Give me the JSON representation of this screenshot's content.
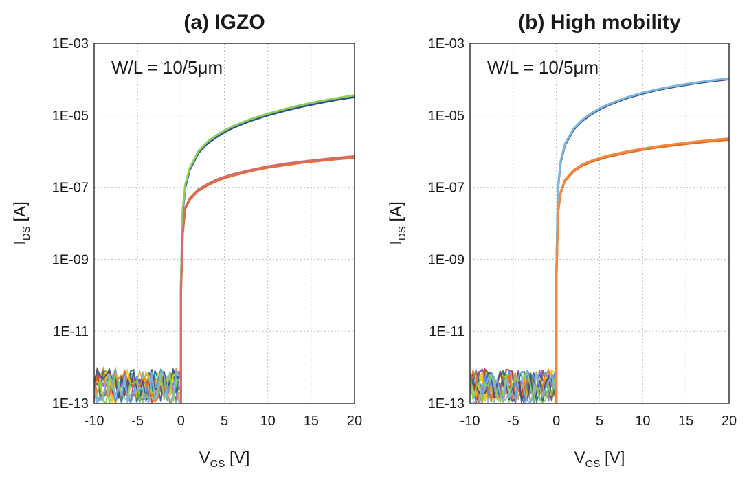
{
  "chart_data": [
    {
      "type": "line",
      "panel": "a",
      "title": "(a) IGZO",
      "annotation": "W/L = 10/5μm",
      "xlabel": {
        "main": "V",
        "sub": "GS",
        "unit": " [V]"
      },
      "ylabel": {
        "main": "I",
        "sub": "DS",
        "unit": " [A]"
      },
      "xlim": [
        -10,
        20
      ],
      "ylim": [
        1e-13,
        0.001
      ],
      "yscale": "log",
      "grid": true,
      "xticks": [
        "-10",
        "-5",
        "0",
        "5",
        "10",
        "15",
        "20"
      ],
      "yticks": [
        "1E-03",
        "1E-05",
        "1E-07",
        "1E-09",
        "1E-11",
        "1E-13"
      ],
      "ytick_values": [
        0.001,
        1e-05,
        1e-07,
        1e-09,
        1e-11,
        1e-13
      ],
      "off_noise": {
        "x_start": -10,
        "x_end": -0.2,
        "floor": 1e-13,
        "ceiling": 1e-12
      },
      "series": [
        {
          "color": "#2f4f8f",
          "x": [
            0,
            0.2,
            0.5,
            1,
            2,
            3,
            4,
            5,
            6,
            8,
            10,
            12,
            14,
            16,
            18,
            20
          ],
          "y": [
            2e-10,
            2e-08,
            1e-07,
            3e-07,
            9e-07,
            1.6e-06,
            2.4e-06,
            3.4e-06,
            4.5e-06,
            7e-06,
            1e-05,
            1.35e-05,
            1.75e-05,
            2.2e-05,
            2.7e-05,
            3.2e-05
          ]
        },
        {
          "color": "#8ccf5a",
          "x": [
            0,
            0.2,
            0.5,
            1,
            2,
            3,
            4,
            5,
            6,
            8,
            10,
            12,
            14,
            16,
            18,
            20
          ],
          "y": [
            2.4e-10,
            2.4e-08,
            1.2e-07,
            3.4e-07,
            1e-06,
            1.8e-06,
            2.7e-06,
            3.8e-06,
            5e-06,
            7.8e-06,
            1.1e-05,
            1.5e-05,
            1.95e-05,
            2.45e-05,
            3e-05,
            3.6e-05
          ]
        },
        {
          "color": "#e8702a",
          "x": [
            0,
            0.2,
            0.5,
            1,
            2,
            3,
            4,
            5,
            6,
            8,
            10,
            12,
            14,
            16,
            18,
            20
          ],
          "y": [
            1e-10,
            5e-09,
            2.5e-08,
            4.5e-08,
            8e-08,
            1.1e-07,
            1.45e-07,
            1.8e-07,
            2.1e-07,
            2.8e-07,
            3.5e-07,
            4.1e-07,
            4.8e-07,
            5.4e-07,
            6e-07,
            6.6e-07
          ]
        },
        {
          "color": "#d46b6b",
          "x": [
            0,
            0.2,
            0.5,
            1,
            2,
            3,
            4,
            5,
            6,
            8,
            10,
            12,
            14,
            16,
            18,
            20
          ],
          "y": [
            1.1e-10,
            5.5e-09,
            2.7e-08,
            4.9e-08,
            8.7e-08,
            1.2e-07,
            1.6e-07,
            1.95e-07,
            2.3e-07,
            3e-07,
            3.8e-07,
            4.5e-07,
            5.2e-07,
            5.9e-07,
            6.6e-07,
            7.3e-07
          ]
        }
      ]
    },
    {
      "type": "line",
      "panel": "b",
      "title": "(b) High mobility",
      "annotation": "W/L = 10/5μm",
      "xlabel": {
        "main": "V",
        "sub": "GS",
        "unit": " [V]"
      },
      "ylabel": {
        "main": "I",
        "sub": "DS",
        "unit": " [A]"
      },
      "xlim": [
        -10,
        20
      ],
      "ylim": [
        1e-13,
        0.001
      ],
      "yscale": "log",
      "grid": true,
      "xticks": [
        "-10",
        "-5",
        "0",
        "5",
        "10",
        "15",
        "20"
      ],
      "yticks": [
        "1E-03",
        "1E-05",
        "1E-07",
        "1E-09",
        "1E-11",
        "1E-13"
      ],
      "ytick_values": [
        0.001,
        1e-05,
        1e-07,
        1e-09,
        1e-11,
        1e-13
      ],
      "off_noise": {
        "x_start": -10,
        "x_end": -0.2,
        "floor": 1e-13,
        "ceiling": 1e-12
      },
      "series": [
        {
          "color": "#3a4f86",
          "x": [
            0,
            0.2,
            0.5,
            1,
            2,
            3,
            4,
            5,
            6,
            8,
            10,
            12,
            14,
            16,
            18,
            20
          ],
          "y": [
            5e-10,
            1e-07,
            5e-07,
            1.5e-06,
            4e-06,
            7e-06,
            1.05e-05,
            1.45e-05,
            1.9e-05,
            2.9e-05,
            4e-05,
            5.2e-05,
            6.4e-05,
            7.6e-05,
            8.8e-05,
            0.0001
          ]
        },
        {
          "color": "#7fb6dc",
          "x": [
            0,
            0.2,
            0.5,
            1,
            2,
            3,
            4,
            5,
            6,
            8,
            10,
            12,
            14,
            16,
            18,
            20
          ],
          "y": [
            5.5e-10,
            1.1e-07,
            5.5e-07,
            1.6e-06,
            4.3e-06,
            7.5e-06,
            1.12e-05,
            1.55e-05,
            2e-05,
            3.05e-05,
            4.2e-05,
            5.45e-05,
            6.7e-05,
            8e-05,
            9.3e-05,
            0.000106
          ]
        },
        {
          "color": "#e56a1f",
          "x": [
            0,
            0.2,
            0.5,
            1,
            2,
            3,
            4,
            5,
            6,
            8,
            10,
            12,
            14,
            16,
            18,
            20
          ],
          "y": [
            2e-10,
            2e-08,
            7e-08,
            1.5e-07,
            2.8e-07,
            4e-07,
            5e-07,
            6e-07,
            7e-07,
            9e-07,
            1.1e-06,
            1.3e-06,
            1.5e-06,
            1.7e-06,
            1.9e-06,
            2.1e-06
          ]
        },
        {
          "color": "#f08a44",
          "x": [
            0,
            0.2,
            0.5,
            1,
            2,
            3,
            4,
            5,
            6,
            8,
            10,
            12,
            14,
            16,
            18,
            20
          ],
          "y": [
            2.2e-10,
            2.2e-08,
            7.6e-08,
            1.62e-07,
            3e-07,
            4.3e-07,
            5.4e-07,
            6.5e-07,
            7.6e-07,
            9.7e-07,
            1.18e-06,
            1.4e-06,
            1.62e-06,
            1.84e-06,
            2.05e-06,
            2.27e-06
          ]
        }
      ]
    }
  ],
  "colors": {
    "noise_palette": [
      "#e8702a",
      "#3a4f86",
      "#8ccf5a",
      "#7fb6dc",
      "#d4a23a",
      "#9b59b6",
      "#c0392b",
      "#1f7a7a",
      "#f1c40f",
      "#5b8def"
    ]
  }
}
